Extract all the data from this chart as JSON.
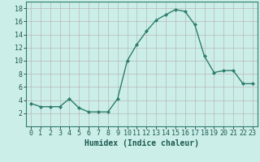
{
  "x": [
    0,
    1,
    2,
    3,
    4,
    5,
    6,
    7,
    8,
    9,
    10,
    11,
    12,
    13,
    14,
    15,
    16,
    17,
    18,
    19,
    20,
    21,
    22,
    23
  ],
  "y": [
    3.5,
    3.0,
    3.0,
    3.0,
    4.2,
    2.8,
    2.2,
    2.2,
    2.2,
    4.2,
    10.0,
    12.5,
    14.5,
    16.2,
    17.0,
    17.8,
    17.5,
    15.5,
    10.7,
    8.2,
    8.5,
    8.5,
    6.5,
    6.5
  ],
  "line_color": "#2d7d6e",
  "marker": "D",
  "marker_size": 2,
  "bg_color": "#cceee8",
  "grid_color": "#b8b8b8",
  "xlabel": "Humidex (Indice chaleur)",
  "ylim": [
    0,
    19
  ],
  "xlim": [
    -0.5,
    23.5
  ],
  "yticks": [
    2,
    4,
    6,
    8,
    10,
    12,
    14,
    16,
    18
  ],
  "xticks": [
    0,
    1,
    2,
    3,
    4,
    5,
    6,
    7,
    8,
    9,
    10,
    11,
    12,
    13,
    14,
    15,
    16,
    17,
    18,
    19,
    20,
    21,
    22,
    23
  ],
  "tick_fontsize": 6,
  "xlabel_fontsize": 7,
  "line_width": 1.0,
  "spine_color": "#2d7d6e"
}
